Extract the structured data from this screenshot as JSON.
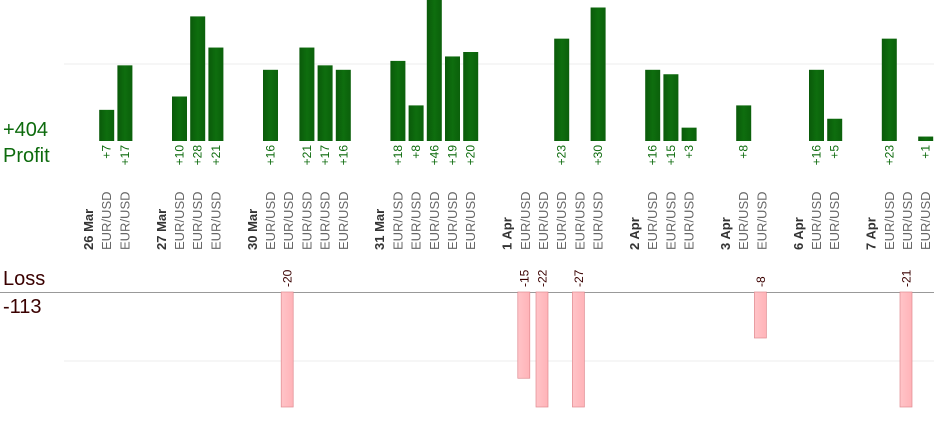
{
  "summary": {
    "profit_total": "+404",
    "profit_label": "Profit",
    "loss_label": "Loss",
    "loss_total": "-113"
  },
  "colors": {
    "profit_bar": "#0e6e0e",
    "profit_text": "#0d6b0d",
    "loss_bar": "#ffb3b8",
    "loss_bar_border": "#e08a90",
    "loss_text": "#3a0000",
    "axis": "#999999",
    "grid": "#eeeeee",
    "date_text": "#333333",
    "pair_text": "#666666"
  },
  "chart_data": {
    "type": "bar",
    "title": "",
    "xlabel": "",
    "ylabel": "",
    "profit_ylim": [
      0,
      30
    ],
    "loss_ylim": [
      -25,
      0
    ],
    "categories": [
      {
        "date": "26 Mar",
        "trades": [
          {
            "pair": "EUR/USD",
            "value": 7,
            "label": "+7"
          },
          {
            "pair": "EUR/USD",
            "value": 17,
            "label": "+17"
          }
        ]
      },
      {
        "date": "27 Mar",
        "trades": [
          {
            "pair": "EUR/USD",
            "value": 10,
            "label": "+10"
          },
          {
            "pair": "EUR/USD",
            "value": 28,
            "label": "+28"
          },
          {
            "pair": "EUR/USD",
            "value": 21,
            "label": "+21"
          }
        ]
      },
      {
        "date": "30 Mar",
        "trades": [
          {
            "pair": "EUR/USD",
            "value": 16,
            "label": "+16"
          },
          {
            "pair": "EUR/USD",
            "value": -20,
            "label": "-20"
          },
          {
            "pair": "EUR/USD",
            "value": 21,
            "label": "+21"
          },
          {
            "pair": "EUR/USD",
            "value": 17,
            "label": "+17"
          },
          {
            "pair": "EUR/USD",
            "value": 16,
            "label": "+16"
          }
        ]
      },
      {
        "date": "31 Mar",
        "trades": [
          {
            "pair": "EUR/USD",
            "value": 18,
            "label": "+18"
          },
          {
            "pair": "EUR/USD",
            "value": 8,
            "label": "+8"
          },
          {
            "pair": "EUR/USD",
            "value": 46,
            "label": "+46"
          },
          {
            "pair": "EUR/USD",
            "value": 19,
            "label": "+19"
          },
          {
            "pair": "EUR/USD",
            "value": 20,
            "label": "+20"
          }
        ]
      },
      {
        "date": "1 Apr",
        "trades": [
          {
            "pair": "EUR/USD",
            "value": -15,
            "label": "-15"
          },
          {
            "pair": "EUR/USD",
            "value": -22,
            "label": "-22"
          },
          {
            "pair": "EUR/USD",
            "value": 23,
            "label": "+23"
          },
          {
            "pair": "EUR/USD",
            "value": -27,
            "label": "-27"
          },
          {
            "pair": "EUR/USD",
            "value": 30,
            "label": "+30"
          }
        ]
      },
      {
        "date": "2 Apr",
        "trades": [
          {
            "pair": "EUR/USD",
            "value": 16,
            "label": "+16"
          },
          {
            "pair": "EUR/USD",
            "value": 15,
            "label": "+15"
          },
          {
            "pair": "EUR/USD",
            "value": 3,
            "label": "+3"
          }
        ]
      },
      {
        "date": "3 Apr",
        "trades": [
          {
            "pair": "EUR/USD",
            "value": 8,
            "label": "+8"
          },
          {
            "pair": "EUR/USD",
            "value": -8,
            "label": "-8"
          }
        ]
      },
      {
        "date": "6 Apr",
        "trades": [
          {
            "pair": "EUR/USD",
            "value": 16,
            "label": "+16"
          },
          {
            "pair": "EUR/USD",
            "value": 5,
            "label": "+5"
          }
        ]
      },
      {
        "date": "7 Apr",
        "trades": [
          {
            "pair": "EUR/USD",
            "value": 23,
            "label": "+23"
          },
          {
            "pair": "EUR/USD",
            "value": -21,
            "label": "-21"
          },
          {
            "pair": "EUR/USD",
            "value": 1,
            "label": "+1"
          }
        ]
      }
    ]
  }
}
